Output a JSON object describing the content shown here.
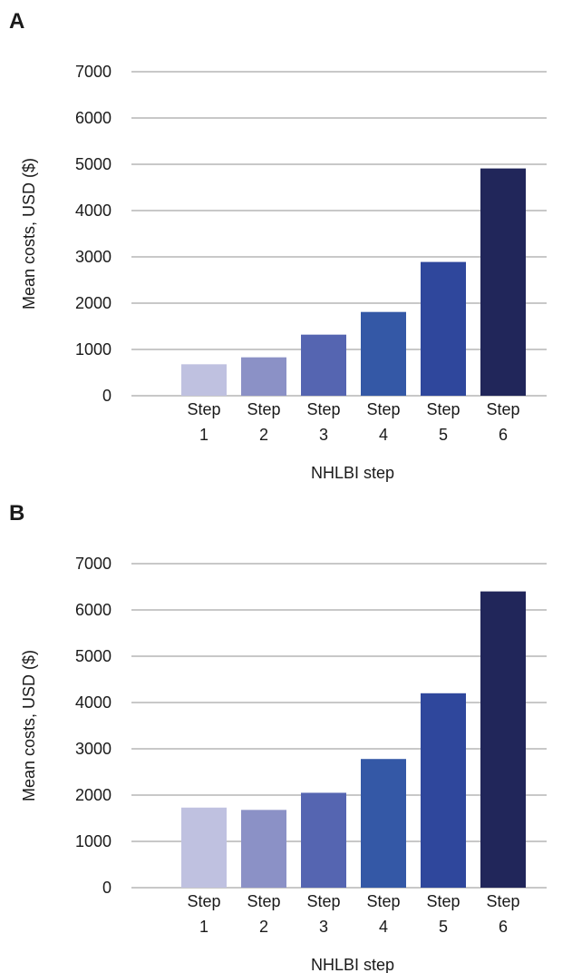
{
  "chart_data": [
    {
      "panel_label": "A",
      "type": "bar",
      "categories": [
        [
          "Step",
          "1"
        ],
        [
          "Step",
          "2"
        ],
        [
          "Step",
          "3"
        ],
        [
          "Step",
          "4"
        ],
        [
          "Step",
          "5"
        ],
        [
          "Step",
          "6"
        ]
      ],
      "values": [
        680,
        830,
        1320,
        1810,
        2890,
        4910
      ],
      "colors": [
        "#bfc1e0",
        "#8b91c6",
        "#5565b1",
        "#3458a6",
        "#2f479c",
        "#21265a"
      ],
      "xlabel": "NHLBI step",
      "ylabel": "Mean costs, USD ($)",
      "ylim": [
        0,
        7000
      ],
      "yticks": [
        0,
        1000,
        2000,
        3000,
        4000,
        5000,
        6000,
        7000
      ],
      "grid": true,
      "legend": "none"
    },
    {
      "panel_label": "B",
      "type": "bar",
      "categories": [
        [
          "Step",
          "1"
        ],
        [
          "Step",
          "2"
        ],
        [
          "Step",
          "3"
        ],
        [
          "Step",
          "4"
        ],
        [
          "Step",
          "5"
        ],
        [
          "Step",
          "6"
        ]
      ],
      "values": [
        1730,
        1680,
        2050,
        2780,
        4200,
        6400
      ],
      "colors": [
        "#bfc1e0",
        "#8b91c6",
        "#5565b1",
        "#3458a6",
        "#2f479c",
        "#21265a"
      ],
      "xlabel": "NHLBI step",
      "ylabel": "Mean costs, USD ($)",
      "ylim": [
        0,
        7000
      ],
      "yticks": [
        0,
        1000,
        2000,
        3000,
        4000,
        5000,
        6000,
        7000
      ],
      "grid": true,
      "legend": "none"
    }
  ]
}
